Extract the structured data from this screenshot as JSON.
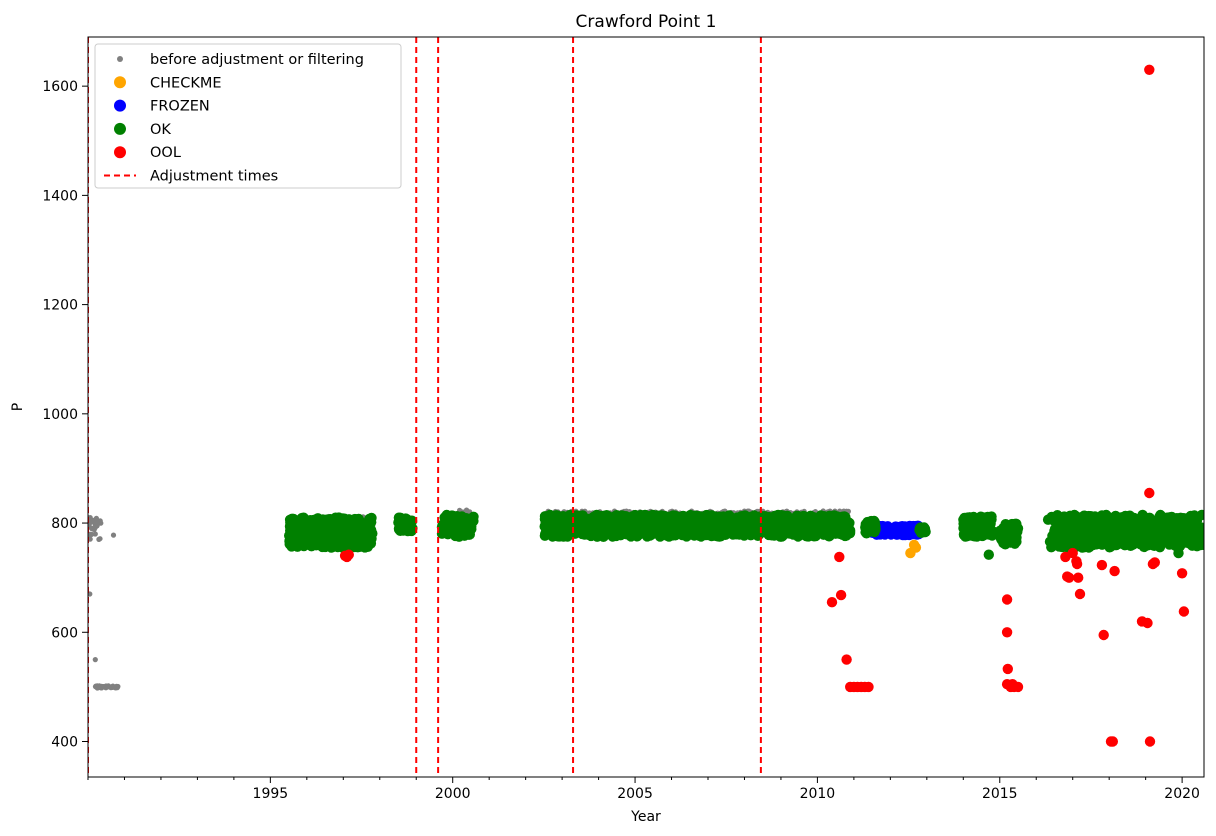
{
  "chart_data": {
    "type": "scatter",
    "title": "Crawford Point 1",
    "xlabel": "Year",
    "ylabel": "P",
    "xlim": [
      1990.0,
      2020.6
    ],
    "ylim": [
      335,
      1690
    ],
    "x_ticks": [
      1995,
      2000,
      2005,
      2010,
      2015,
      2020
    ],
    "y_ticks": [
      400,
      600,
      800,
      1000,
      1200,
      1400,
      1600
    ],
    "grid": false,
    "legend_position": "top-left",
    "adjustment_times": [
      1990.0,
      1999.0,
      1999.6,
      2003.3,
      2008.45
    ],
    "series": [
      {
        "name": "before adjustment or filtering",
        "color": "#808080",
        "marker": "small-dot",
        "points": [
          [
            1990.0,
            810
          ],
          [
            1990.05,
            800
          ],
          [
            1990.1,
            790
          ],
          [
            1990.15,
            805
          ],
          [
            1990.2,
            780
          ],
          [
            1990.25,
            795
          ],
          [
            1990.3,
            770
          ],
          [
            1990.35,
            800
          ],
          [
            1990.05,
            670
          ],
          [
            1990.2,
            550
          ],
          [
            1990.7,
            778
          ]
        ],
        "bands": [
          {
            "x0": 1990.0,
            "x1": 1990.35,
            "y0": 770,
            "y1": 812
          },
          {
            "x0": 1990.2,
            "x1": 1990.85,
            "y0": 498,
            "y1": 502
          },
          {
            "x0": 1995.5,
            "x1": 1997.9,
            "y0": 792,
            "y1": 812
          },
          {
            "x0": 2000.0,
            "x1": 2000.5,
            "y0": 805,
            "y1": 825
          },
          {
            "x0": 2002.5,
            "x1": 2010.9,
            "y0": 800,
            "y1": 822
          }
        ]
      },
      {
        "name": "CHECKME",
        "color": "#ffa500",
        "marker": "dot",
        "points": [
          [
            2012.55,
            745
          ],
          [
            2012.65,
            760
          ],
          [
            2012.7,
            755
          ]
        ]
      },
      {
        "name": "FROZEN",
        "color": "#0000ff",
        "marker": "dot",
        "points": [],
        "bands": [
          {
            "x0": 2011.5,
            "x1": 2012.85,
            "y0": 778,
            "y1": 795
          }
        ]
      },
      {
        "name": "OK",
        "color": "#008000",
        "marker": "dot",
        "points": [
          [
            2014.7,
            742
          ],
          [
            2012.8,
            787
          ],
          [
            2012.95,
            787
          ],
          [
            2016.8,
            780
          ],
          [
            2018.2,
            760
          ],
          [
            2019.9,
            745
          ],
          [
            2017.0,
            760
          ],
          [
            2015.2,
            765
          ]
        ],
        "bands": [
          {
            "x0": 1995.5,
            "x1": 1997.8,
            "y0": 755,
            "y1": 810
          },
          {
            "x0": 1998.5,
            "x1": 1998.9,
            "y0": 785,
            "y1": 810
          },
          {
            "x0": 1999.7,
            "x1": 2000.6,
            "y0": 775,
            "y1": 815
          },
          {
            "x0": 2002.5,
            "x1": 2010.9,
            "y0": 775,
            "y1": 815
          },
          {
            "x0": 2011.3,
            "x1": 2011.6,
            "y0": 780,
            "y1": 805
          },
          {
            "x0": 2012.8,
            "x1": 2013.0,
            "y0": 782,
            "y1": 792
          },
          {
            "x0": 2014.0,
            "x1": 2014.8,
            "y0": 775,
            "y1": 812
          },
          {
            "x0": 2015.0,
            "x1": 2015.5,
            "y0": 760,
            "y1": 800
          },
          {
            "x0": 2016.3,
            "x1": 2020.6,
            "y0": 755,
            "y1": 815
          }
        ]
      },
      {
        "name": "OOL",
        "color": "#ff0000",
        "marker": "dot",
        "points": [
          [
            1997.05,
            740
          ],
          [
            1997.15,
            742
          ],
          [
            1997.1,
            738
          ],
          [
            2010.4,
            655
          ],
          [
            2010.6,
            738
          ],
          [
            2010.65,
            668
          ],
          [
            2010.8,
            550
          ],
          [
            2010.9,
            500
          ],
          [
            2011.0,
            500
          ],
          [
            2011.1,
            500
          ],
          [
            2011.2,
            500
          ],
          [
            2011.3,
            500
          ],
          [
            2011.4,
            500
          ],
          [
            2015.2,
            660
          ],
          [
            2015.2,
            600
          ],
          [
            2015.22,
            533
          ],
          [
            2015.2,
            505
          ],
          [
            2015.3,
            500
          ],
          [
            2015.4,
            500
          ],
          [
            2015.5,
            500
          ],
          [
            2015.35,
            505
          ],
          [
            2016.8,
            738
          ],
          [
            2016.85,
            702
          ],
          [
            2016.9,
            700
          ],
          [
            2017.0,
            745
          ],
          [
            2017.1,
            730
          ],
          [
            2017.15,
            700
          ],
          [
            2017.12,
            725
          ],
          [
            2017.2,
            670
          ],
          [
            2017.8,
            723
          ],
          [
            2017.85,
            595
          ],
          [
            2018.05,
            400
          ],
          [
            2018.1,
            400
          ],
          [
            2018.15,
            712
          ],
          [
            2018.9,
            620
          ],
          [
            2019.05,
            617
          ],
          [
            2019.1,
            855
          ],
          [
            2019.1,
            1630
          ],
          [
            2019.12,
            400
          ],
          [
            2019.2,
            725
          ],
          [
            2019.25,
            728
          ],
          [
            2020.0,
            708
          ],
          [
            2020.05,
            638
          ]
        ]
      }
    ],
    "legend_extra": {
      "name": "Adjustment times",
      "color": "#ff0000",
      "style": "dashed"
    }
  }
}
